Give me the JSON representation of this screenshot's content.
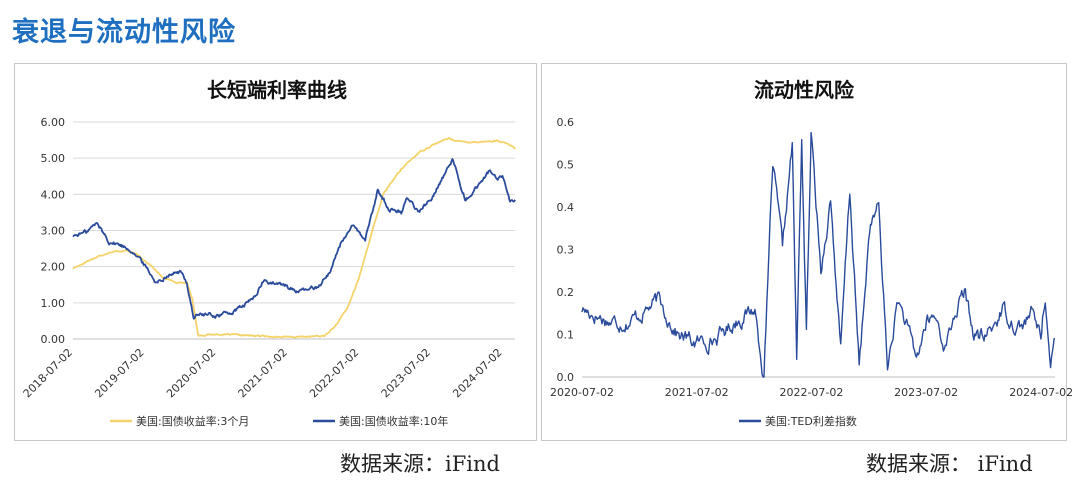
{
  "page": {
    "title": "衰退与流动性风险",
    "source_left": "数据来源：iFind",
    "source_right": "数据来源： iFind"
  },
  "colors": {
    "title": "#1f6fc0",
    "series_3m": "#f5d36a",
    "series_10y": "#2a4b9b",
    "series_ted": "#2a4b9b",
    "grid": "#d9d9d9"
  },
  "chart_data": [
    {
      "type": "line",
      "title": "长短端利率曲线",
      "xlabel": "",
      "ylabel": "",
      "ylim": [
        0,
        6
      ],
      "yticks": [
        "0.00",
        "1.00",
        "2.00",
        "3.00",
        "4.00",
        "5.00",
        "6.00"
      ],
      "xticks": [
        "2018-07-02",
        "2019-07-02",
        "2020-07-02",
        "2021-07-02",
        "2022-07-02",
        "2023-07-02",
        "2024-07-02"
      ],
      "grid": true,
      "legend_position": "bottom",
      "series": [
        {
          "name": "美国:国债收益率:3个月",
          "points": [
            [
              "2018-07-02",
              1.95
            ],
            [
              "2018-10-01",
              2.2
            ],
            [
              "2019-01-02",
              2.4
            ],
            [
              "2019-04-01",
              2.45
            ],
            [
              "2019-06-03",
              2.3
            ],
            [
              "2019-08-01",
              2.05
            ],
            [
              "2019-10-01",
              1.7
            ],
            [
              "2019-12-02",
              1.58
            ],
            [
              "2020-02-03",
              1.55
            ],
            [
              "2020-03-02",
              1.1
            ],
            [
              "2020-04-01",
              0.1
            ],
            [
              "2020-07-01",
              0.13
            ],
            [
              "2021-01-04",
              0.09
            ],
            [
              "2021-07-01",
              0.05
            ],
            [
              "2022-01-03",
              0.08
            ],
            [
              "2022-03-01",
              0.35
            ],
            [
              "2022-05-02",
              0.85
            ],
            [
              "2022-07-01",
              1.7
            ],
            [
              "2022-09-01",
              2.9
            ],
            [
              "2022-11-01",
              4.0
            ],
            [
              "2023-01-03",
              4.5
            ],
            [
              "2023-03-01",
              4.85
            ],
            [
              "2023-05-01",
              5.15
            ],
            [
              "2023-07-03",
              5.35
            ],
            [
              "2023-10-02",
              5.55
            ],
            [
              "2023-12-01",
              5.45
            ],
            [
              "2024-03-01",
              5.45
            ],
            [
              "2024-06-03",
              5.48
            ],
            [
              "2024-08-01",
              5.38
            ],
            [
              "2024-09-03",
              5.25
            ]
          ]
        },
        {
          "name": "美国:国债收益率:10年",
          "points": [
            [
              "2018-07-02",
              2.85
            ],
            [
              "2018-09-04",
              2.95
            ],
            [
              "2018-11-01",
              3.2
            ],
            [
              "2019-01-02",
              2.7
            ],
            [
              "2019-03-01",
              2.6
            ],
            [
              "2019-05-01",
              2.45
            ],
            [
              "2019-07-01",
              2.05
            ],
            [
              "2019-09-03",
              1.55
            ],
            [
              "2019-11-01",
              1.8
            ],
            [
              "2020-01-02",
              1.85
            ],
            [
              "2020-02-03",
              1.55
            ],
            [
              "2020-03-09",
              0.6
            ],
            [
              "2020-04-01",
              0.68
            ],
            [
              "2020-07-01",
              0.65
            ],
            [
              "2020-10-01",
              0.75
            ],
            [
              "2021-01-04",
              1.1
            ],
            [
              "2021-03-01",
              1.6
            ],
            [
              "2021-07-01",
              1.45
            ],
            [
              "2021-09-01",
              1.3
            ],
            [
              "2021-12-01",
              1.45
            ],
            [
              "2022-02-01",
              1.85
            ],
            [
              "2022-04-01",
              2.7
            ],
            [
              "2022-06-01",
              3.1
            ],
            [
              "2022-08-01",
              2.75
            ],
            [
              "2022-10-03",
              4.1
            ],
            [
              "2022-12-01",
              3.6
            ],
            [
              "2023-02-01",
              3.5
            ],
            [
              "2023-03-01",
              3.95
            ],
            [
              "2023-05-01",
              3.5
            ],
            [
              "2023-07-03",
              3.9
            ],
            [
              "2023-10-19",
              4.95
            ],
            [
              "2023-12-27",
              3.85
            ],
            [
              "2024-02-01",
              4.05
            ],
            [
              "2024-04-25",
              4.65
            ],
            [
              "2024-06-03",
              4.4
            ],
            [
              "2024-07-01",
              4.45
            ],
            [
              "2024-08-05",
              3.8
            ],
            [
              "2024-09-03",
              3.85
            ]
          ]
        }
      ]
    },
    {
      "type": "line",
      "title": "流动性风险",
      "xlabel": "",
      "ylabel": "",
      "ylim": [
        0,
        0.6
      ],
      "yticks": [
        "0.0",
        "0.1",
        "0.2",
        "0.3",
        "0.4",
        "0.5",
        "0.6"
      ],
      "xticks": [
        "2020-07-02",
        "2021-07-02",
        "2022-07-02",
        "2023-07-02",
        "2024-07-02"
      ],
      "grid": false,
      "legend_position": "bottom",
      "series": [
        {
          "name": "美国:TED利差指数",
          "points": [
            [
              "2020-07-02",
              0.16
            ],
            [
              "2020-10-01",
              0.13
            ],
            [
              "2020-12-01",
              0.13
            ],
            [
              "2021-03-01",
              0.18
            ],
            [
              "2021-05-03",
              0.1
            ],
            [
              "2021-07-01",
              0.08
            ],
            [
              "2021-09-01",
              0.09
            ],
            [
              "2021-11-01",
              0.13
            ],
            [
              "2022-01-03",
              0.16
            ],
            [
              "2022-02-01",
              0.0
            ],
            [
              "2022-03-01",
              0.5
            ],
            [
              "2022-04-01",
              0.3
            ],
            [
              "2022-05-02",
              0.55
            ],
            [
              "2022-05-16",
              0.04
            ],
            [
              "2022-06-01",
              0.56
            ],
            [
              "2022-06-16",
              0.1
            ],
            [
              "2022-07-01",
              0.57
            ],
            [
              "2022-08-01",
              0.25
            ],
            [
              "2022-09-01",
              0.42
            ],
            [
              "2022-10-03",
              0.06
            ],
            [
              "2022-11-01",
              0.44
            ],
            [
              "2022-12-01",
              0.02
            ],
            [
              "2023-01-03",
              0.35
            ],
            [
              "2023-02-01",
              0.4
            ],
            [
              "2023-03-01",
              0.02
            ],
            [
              "2023-04-03",
              0.18
            ],
            [
              "2023-05-01",
              0.12
            ],
            [
              "2023-06-01",
              0.04
            ],
            [
              "2023-07-03",
              0.13
            ],
            [
              "2023-08-01",
              0.14
            ],
            [
              "2023-09-01",
              0.07
            ],
            [
              "2023-10-02",
              0.15
            ],
            [
              "2023-11-01",
              0.2
            ],
            [
              "2023-12-01",
              0.1
            ],
            [
              "2024-01-02",
              0.09
            ],
            [
              "2024-02-01",
              0.12
            ],
            [
              "2024-03-01",
              0.16
            ],
            [
              "2024-04-01",
              0.13
            ],
            [
              "2024-05-01",
              0.12
            ],
            [
              "2024-06-03",
              0.15
            ],
            [
              "2024-07-01",
              0.1
            ],
            [
              "2024-07-15",
              0.2
            ],
            [
              "2024-08-01",
              0.01
            ],
            [
              "2024-08-15",
              0.09
            ]
          ]
        }
      ]
    }
  ]
}
